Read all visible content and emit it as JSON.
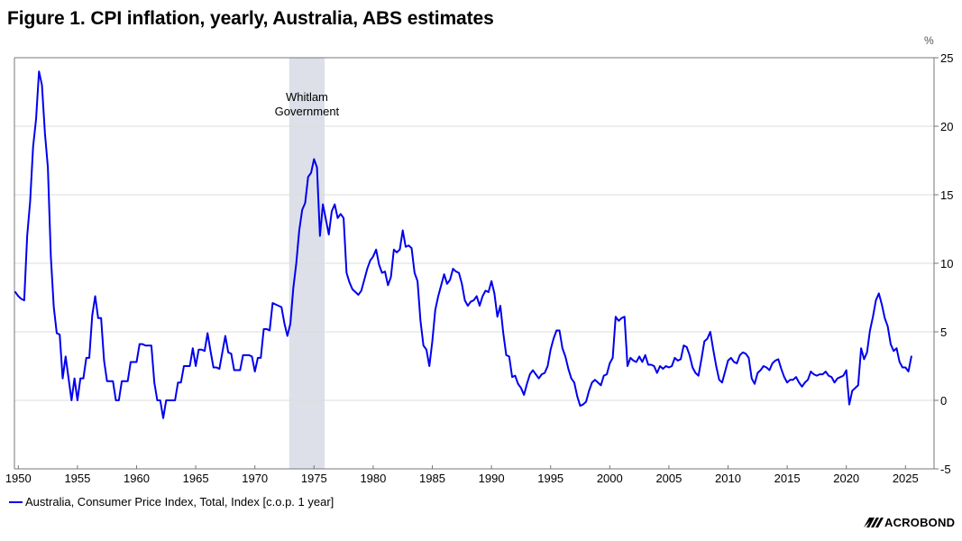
{
  "title": "Figure 1. CPI inflation, yearly, Australia, ABS estimates",
  "unit_label": "%",
  "legend": [
    {
      "label": "Australia, Consumer Price Index, Total, Index [c.o.p. 1 year]",
      "color": "#0000ee"
    }
  ],
  "source_logo": "MACROBOND",
  "colors": {
    "series": "#0000ee",
    "shade": "#dde0e8",
    "grid": "#dcdcdc",
    "axis": "#777777"
  },
  "chart_data": {
    "type": "line",
    "title": "Figure 1. CPI inflation, yearly, Australia, ABS estimates",
    "xlabel": "",
    "ylabel": "%",
    "xlim": [
      1949.7,
      2027.5
    ],
    "ylim": [
      -5,
      25
    ],
    "y_axis_side": "right",
    "grid": true,
    "legend_position": "bottom-left",
    "x_ticks": [
      1950,
      1955,
      1960,
      1965,
      1970,
      1975,
      1980,
      1985,
      1990,
      1995,
      2000,
      2005,
      2010,
      2015,
      2020,
      2025
    ],
    "y_ticks": [
      -5,
      0,
      5,
      10,
      15,
      20,
      25
    ],
    "shaded_regions": [
      {
        "from": 1972.9,
        "to": 1975.9,
        "label_lines": [
          "Whitlam",
          "Government"
        ]
      }
    ],
    "series": [
      {
        "name": "Australia, Consumer Price Index, Total, Index [c.o.p. 1 year]",
        "x_start": 1949.75,
        "x_step": 0.25,
        "values": [
          7.9,
          7.6,
          7.4,
          7.3,
          12.0,
          14.5,
          18.5,
          20.5,
          24.0,
          23.0,
          19.5,
          17.0,
          10.5,
          6.8,
          4.9,
          4.8,
          1.6,
          3.2,
          1.6,
          0.0,
          1.6,
          0.0,
          1.6,
          1.6,
          3.1,
          3.1,
          6.2,
          7.6,
          6.0,
          6.0,
          2.9,
          1.4,
          1.4,
          1.4,
          0.0,
          0.0,
          1.4,
          1.4,
          1.4,
          2.8,
          2.8,
          2.8,
          4.1,
          4.1,
          4.0,
          4.0,
          4.0,
          1.3,
          0.0,
          0.0,
          -1.3,
          0.0,
          0.0,
          0.0,
          0.0,
          1.3,
          1.3,
          2.5,
          2.5,
          2.5,
          3.8,
          2.5,
          3.7,
          3.7,
          3.6,
          4.9,
          3.6,
          2.4,
          2.4,
          2.3,
          3.5,
          4.7,
          3.5,
          3.4,
          2.2,
          2.2,
          2.2,
          3.3,
          3.3,
          3.3,
          3.2,
          2.1,
          3.1,
          3.1,
          5.2,
          5.2,
          5.1,
          7.1,
          7.0,
          6.9,
          6.8,
          5.6,
          4.7,
          5.6,
          8.2,
          10.0,
          12.4,
          13.9,
          14.4,
          16.3,
          16.6,
          17.6,
          17.0,
          12.0,
          14.3,
          13.2,
          12.1,
          13.8,
          14.3,
          13.3,
          13.6,
          13.3,
          9.3,
          8.6,
          8.1,
          7.9,
          7.7,
          8.0,
          8.8,
          9.6,
          10.2,
          10.5,
          11.0,
          9.9,
          9.3,
          9.4,
          8.4,
          9.0,
          11.0,
          10.8,
          11.0,
          12.4,
          11.2,
          11.3,
          11.1,
          9.3,
          8.7,
          5.8,
          4.0,
          3.7,
          2.5,
          4.3,
          6.6,
          7.6,
          8.4,
          9.2,
          8.5,
          8.8,
          9.6,
          9.4,
          9.3,
          8.5,
          7.3,
          6.9,
          7.2,
          7.3,
          7.6,
          6.9,
          7.6,
          8.0,
          7.9,
          8.7,
          7.8,
          6.1,
          6.9,
          4.9,
          3.3,
          3.2,
          1.7,
          1.8,
          1.2,
          0.9,
          0.4,
          1.2,
          1.9,
          2.2,
          1.9,
          1.6,
          1.9,
          2.0,
          2.5,
          3.7,
          4.5,
          5.1,
          5.1,
          3.8,
          3.2,
          2.3,
          1.6,
          1.3,
          0.3,
          -0.4,
          -0.3,
          -0.1,
          0.7,
          1.3,
          1.5,
          1.3,
          1.1,
          1.8,
          1.9,
          2.7,
          3.1,
          6.1,
          5.8,
          6.0,
          6.1,
          2.5,
          3.1,
          2.9,
          2.8,
          3.2,
          2.8,
          3.3,
          2.6,
          2.6,
          2.5,
          2.0,
          2.5,
          2.3,
          2.5,
          2.4,
          2.5,
          3.1,
          2.9,
          3.0,
          4.0,
          3.9,
          3.3,
          2.4,
          2.0,
          1.8,
          3.0,
          4.3,
          4.5,
          5.0,
          3.7,
          2.5,
          1.5,
          1.3,
          2.1,
          2.9,
          3.1,
          2.8,
          2.7,
          3.3,
          3.5,
          3.4,
          3.1,
          1.6,
          1.2,
          2.0,
          2.2,
          2.5,
          2.4,
          2.2,
          2.7,
          2.9,
          3.0,
          2.3,
          1.7,
          1.3,
          1.5,
          1.5,
          1.7,
          1.3,
          1.0,
          1.3,
          1.5,
          2.1,
          1.9,
          1.8,
          1.9,
          1.9,
          2.1,
          1.8,
          1.7,
          1.3,
          1.6,
          1.7,
          1.8,
          2.2,
          -0.3,
          0.7,
          0.9,
          1.1,
          3.8,
          3.0,
          3.5,
          5.1,
          6.1,
          7.3,
          7.8,
          7.0,
          6.0,
          5.4,
          4.1,
          3.6,
          3.8,
          2.8,
          2.4,
          2.4,
          2.1,
          3.2
        ]
      }
    ]
  }
}
